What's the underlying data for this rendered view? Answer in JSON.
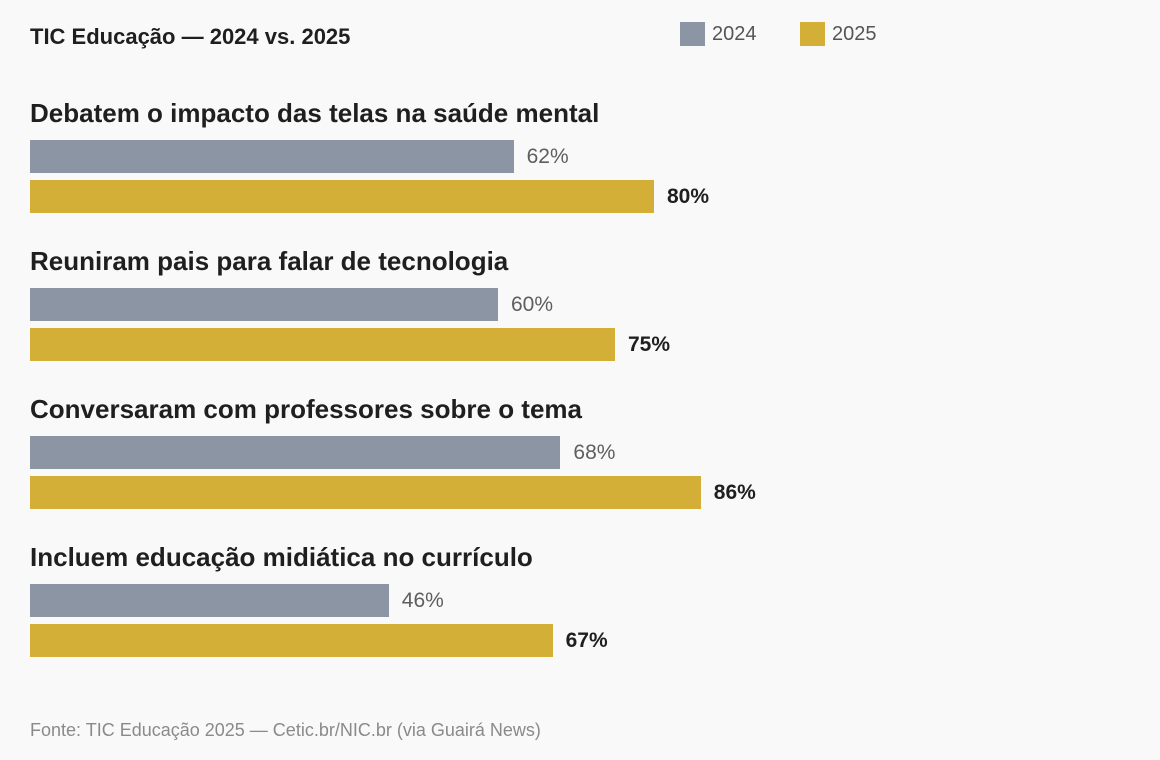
{
  "title": "TIC Educação — 2024 vs. 2025",
  "source": "Fonte: TIC Educação 2025 — Cetic.br/NIC.br (via Guairá News)",
  "colors": {
    "series_2024": "#8b95a4",
    "series_2025": "#d4af37",
    "background": "#f9f9f9"
  },
  "chart_data": {
    "type": "bar",
    "orientation": "horizontal",
    "categories": [
      "Debatem o impacto das telas na saúde mental",
      "Reuniram pais para falar de tecnologia",
      "Conversaram com professores sobre o tema",
      "Incluem educação midiática no currículo"
    ],
    "series": [
      {
        "name": "2024",
        "values": [
          62,
          60,
          68,
          46
        ],
        "labels": [
          "62%",
          "60%",
          "68%",
          "46%"
        ]
      },
      {
        "name": "2025",
        "values": [
          80,
          75,
          86,
          67
        ],
        "labels": [
          "80%",
          "75%",
          "86%",
          "67%"
        ]
      }
    ],
    "unit": "%",
    "xlim": [
      0,
      100
    ],
    "grid": false,
    "legend_position": "top-right"
  }
}
